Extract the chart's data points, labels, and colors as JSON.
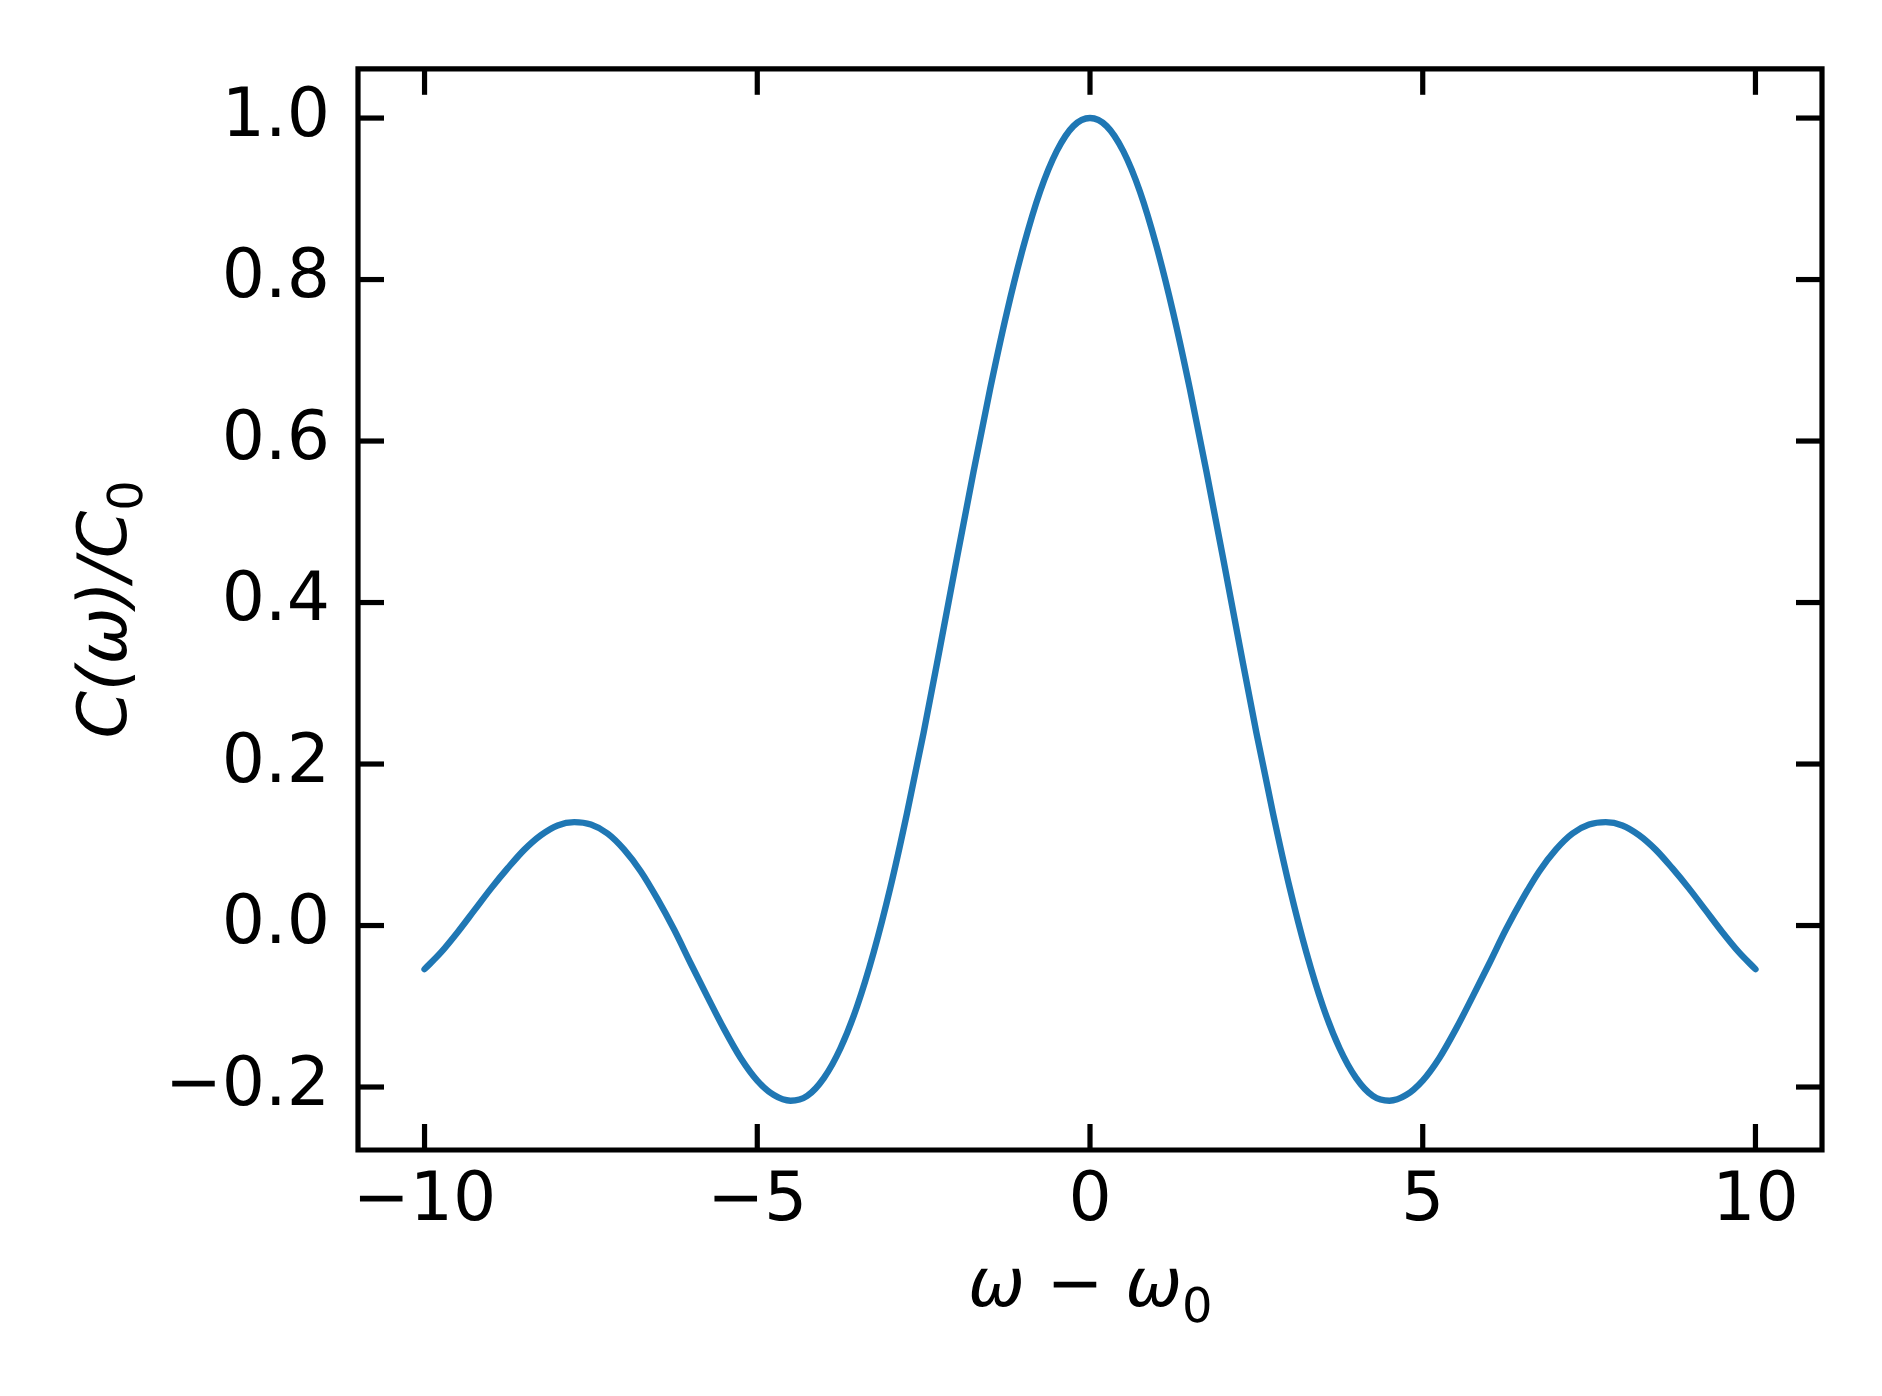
{
  "chart_data": {
    "type": "line",
    "xlabel": "ω − ω$_{0}$",
    "ylabel": "C(ω)/C$_{0}$",
    "x": [
      -10,
      -9.75,
      -9.5,
      -9.25,
      -9,
      -8.75,
      -8.5,
      -8.25,
      -8,
      -7.75,
      -7.5,
      -7.25,
      -7,
      -6.75,
      -6.5,
      -6.25,
      -6,
      -5.75,
      -5.5,
      -5.25,
      -5,
      -4.75,
      -4.5,
      -4.25,
      -4,
      -3.75,
      -3.5,
      -3.25,
      -3,
      -2.75,
      -2.5,
      -2.25,
      -2,
      -1.75,
      -1.5,
      -1.25,
      -1,
      -0.75,
      -0.5,
      -0.25,
      0,
      0.25,
      0.5,
      0.75,
      1,
      1.25,
      1.5,
      1.75,
      2,
      2.25,
      2.5,
      2.75,
      3,
      3.25,
      3.5,
      3.75,
      4,
      4.25,
      4.5,
      4.75,
      5,
      5.25,
      5.5,
      5.75,
      6,
      6.25,
      6.5,
      6.75,
      7,
      7.25,
      7.5,
      7.75,
      8,
      8.25,
      8.5,
      8.75,
      9,
      9.25,
      9.5,
      9.75,
      10
    ],
    "series": [
      {
        "color": "#1f77b4",
        "values": [
          -0.054,
          -0.033,
          -0.008,
          0.019,
          0.046,
          0.071,
          0.094,
          0.112,
          0.124,
          0.128,
          0.125,
          0.114,
          0.094,
          0.067,
          0.033,
          -0.005,
          -0.047,
          -0.088,
          -0.128,
          -0.164,
          -0.192,
          -0.21,
          -0.217,
          -0.211,
          -0.189,
          -0.152,
          -0.1,
          -0.033,
          0.047,
          0.139,
          0.239,
          0.346,
          0.455,
          0.562,
          0.665,
          0.759,
          0.841,
          0.909,
          0.959,
          0.99,
          1,
          0.99,
          0.959,
          0.909,
          0.841,
          0.759,
          0.665,
          0.562,
          0.455,
          0.346,
          0.239,
          0.139,
          0.047,
          -0.033,
          -0.1,
          -0.152,
          -0.189,
          -0.211,
          -0.217,
          -0.21,
          -0.192,
          -0.164,
          -0.128,
          -0.088,
          -0.047,
          -0.005,
          0.033,
          0.067,
          0.094,
          0.114,
          0.125,
          0.128,
          0.124,
          0.112,
          0.094,
          0.071,
          0.046,
          0.019,
          -0.008,
          -0.033,
          -0.054
        ]
      }
    ],
    "xlim": [
      -11,
      11
    ],
    "ylim": [
      -0.278,
      1.061
    ],
    "xticks": [
      {
        "value": -10,
        "label": "−10"
      },
      {
        "value": -5,
        "label": "−5"
      },
      0,
      5,
      10
    ],
    "yticks": [
      {
        "value": -0.2,
        "label": "−0.2"
      },
      {
        "value": 0,
        "label": "0.0"
      },
      {
        "value": 0.2,
        "label": "0.2"
      },
      {
        "value": 0.4,
        "label": "0.4"
      },
      {
        "value": 0.6,
        "label": "0.6"
      },
      {
        "value": 0.8,
        "label": "0.8"
      },
      {
        "value": 1,
        "label": "1.0"
      }
    ]
  }
}
